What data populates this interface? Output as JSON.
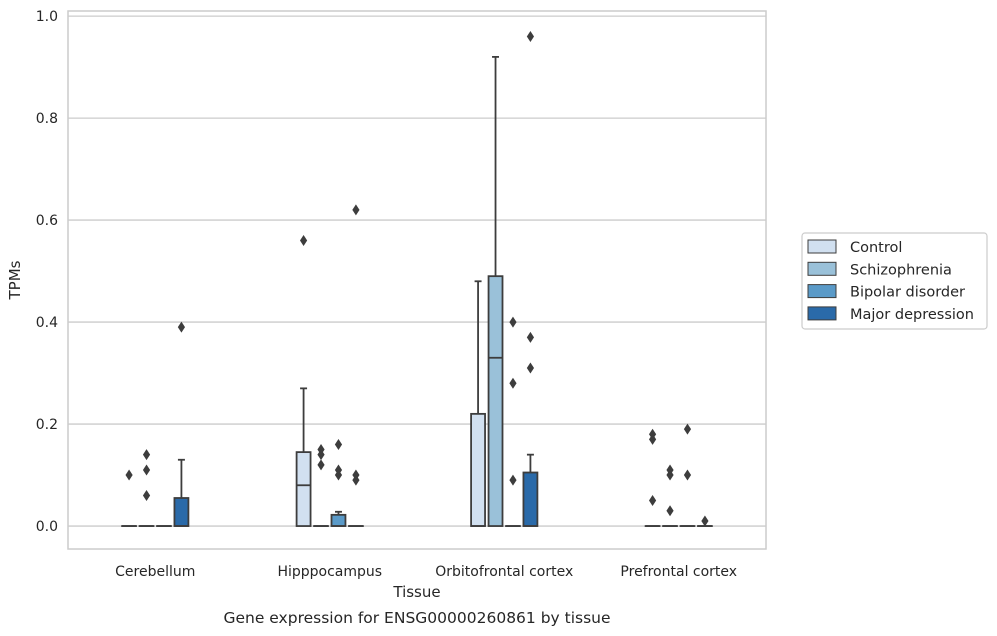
{
  "chart_data": {
    "type": "box",
    "title": "",
    "caption": "Gene expression for ENSG00000260861 by tissue",
    "xlabel": "Tissue",
    "ylabel": "TPMs",
    "ylim": [
      -0.045,
      1.01
    ],
    "yticks": [
      "0.0",
      "0.2",
      "0.4",
      "0.6",
      "0.8",
      "1.0"
    ],
    "ytick_values": [
      0,
      0.2,
      0.4,
      0.6,
      0.8,
      1.0
    ],
    "grid": "horizontal",
    "legend_position": "center-right outside",
    "categories": [
      "Cerebellum",
      "Hipppocampus",
      "Orbitofrontal cortex",
      "Prefrontal cortex"
    ],
    "series": [
      {
        "name": "Control",
        "color": "#d1e0f0",
        "boxes": [
          {
            "q1": 0,
            "median": 0,
            "q3": 0,
            "whisker_low": 0,
            "whisker_high": 0,
            "outliers": [
              0.1
            ]
          },
          {
            "q1": 0,
            "median": 0.08,
            "q3": 0.145,
            "whisker_low": 0,
            "whisker_high": 0.27,
            "outliers": [
              0.56
            ]
          },
          {
            "q1": 0,
            "median": 0,
            "q3": 0.22,
            "whisker_low": 0,
            "whisker_high": 0.48,
            "outliers": []
          },
          {
            "q1": 0,
            "median": 0,
            "q3": 0,
            "whisker_low": 0,
            "whisker_high": 0,
            "outliers": [
              0.05,
              0.17,
              0.18
            ]
          }
        ]
      },
      {
        "name": "Schizophrenia",
        "color": "#9ac1d9",
        "boxes": [
          {
            "q1": 0,
            "median": 0,
            "q3": 0,
            "whisker_low": 0,
            "whisker_high": 0,
            "outliers": [
              0.06,
              0.11,
              0.14
            ]
          },
          {
            "q1": 0,
            "median": 0,
            "q3": 0,
            "whisker_low": 0,
            "whisker_high": 0,
            "outliers": [
              0.12,
              0.14,
              0.15
            ]
          },
          {
            "q1": 0,
            "median": 0.33,
            "q3": 0.49,
            "whisker_low": 0,
            "whisker_high": 0.92,
            "outliers": []
          },
          {
            "q1": 0,
            "median": 0,
            "q3": 0,
            "whisker_low": 0,
            "whisker_high": 0,
            "outliers": [
              0.03,
              0.1,
              0.11
            ]
          }
        ]
      },
      {
        "name": "Bipolar disorder",
        "color": "#5a9ac8",
        "boxes": [
          {
            "q1": 0,
            "median": 0,
            "q3": 0,
            "whisker_low": 0,
            "whisker_high": 0,
            "outliers": []
          },
          {
            "q1": 0,
            "median": 0,
            "q3": 0.022,
            "whisker_low": 0,
            "whisker_high": 0.028,
            "outliers": [
              0.1,
              0.11,
              0.16
            ]
          },
          {
            "q1": 0,
            "median": 0,
            "q3": 0,
            "whisker_low": 0,
            "whisker_high": 0,
            "outliers": [
              0.09,
              0.28,
              0.4
            ]
          },
          {
            "q1": 0,
            "median": 0,
            "q3": 0,
            "whisker_low": 0,
            "whisker_high": 0,
            "outliers": [
              0.1,
              0.19
            ]
          }
        ]
      },
      {
        "name": "Major depression",
        "color": "#2a6aa9",
        "boxes": [
          {
            "q1": 0,
            "median": 0,
            "q3": 0.055,
            "whisker_low": 0,
            "whisker_high": 0.13,
            "outliers": [
              0.39
            ]
          },
          {
            "q1": 0,
            "median": 0,
            "q3": 0,
            "whisker_low": 0,
            "whisker_high": 0,
            "outliers": [
              0.09,
              0.1,
              0.62
            ]
          },
          {
            "q1": 0,
            "median": 0,
            "q3": 0.105,
            "whisker_low": 0,
            "whisker_high": 0.14,
            "outliers": [
              0.31,
              0.37,
              0.96
            ]
          },
          {
            "q1": 0,
            "median": 0,
            "q3": 0,
            "whisker_low": 0,
            "whisker_high": 0,
            "outliers": [
              0.01
            ]
          }
        ]
      }
    ]
  }
}
